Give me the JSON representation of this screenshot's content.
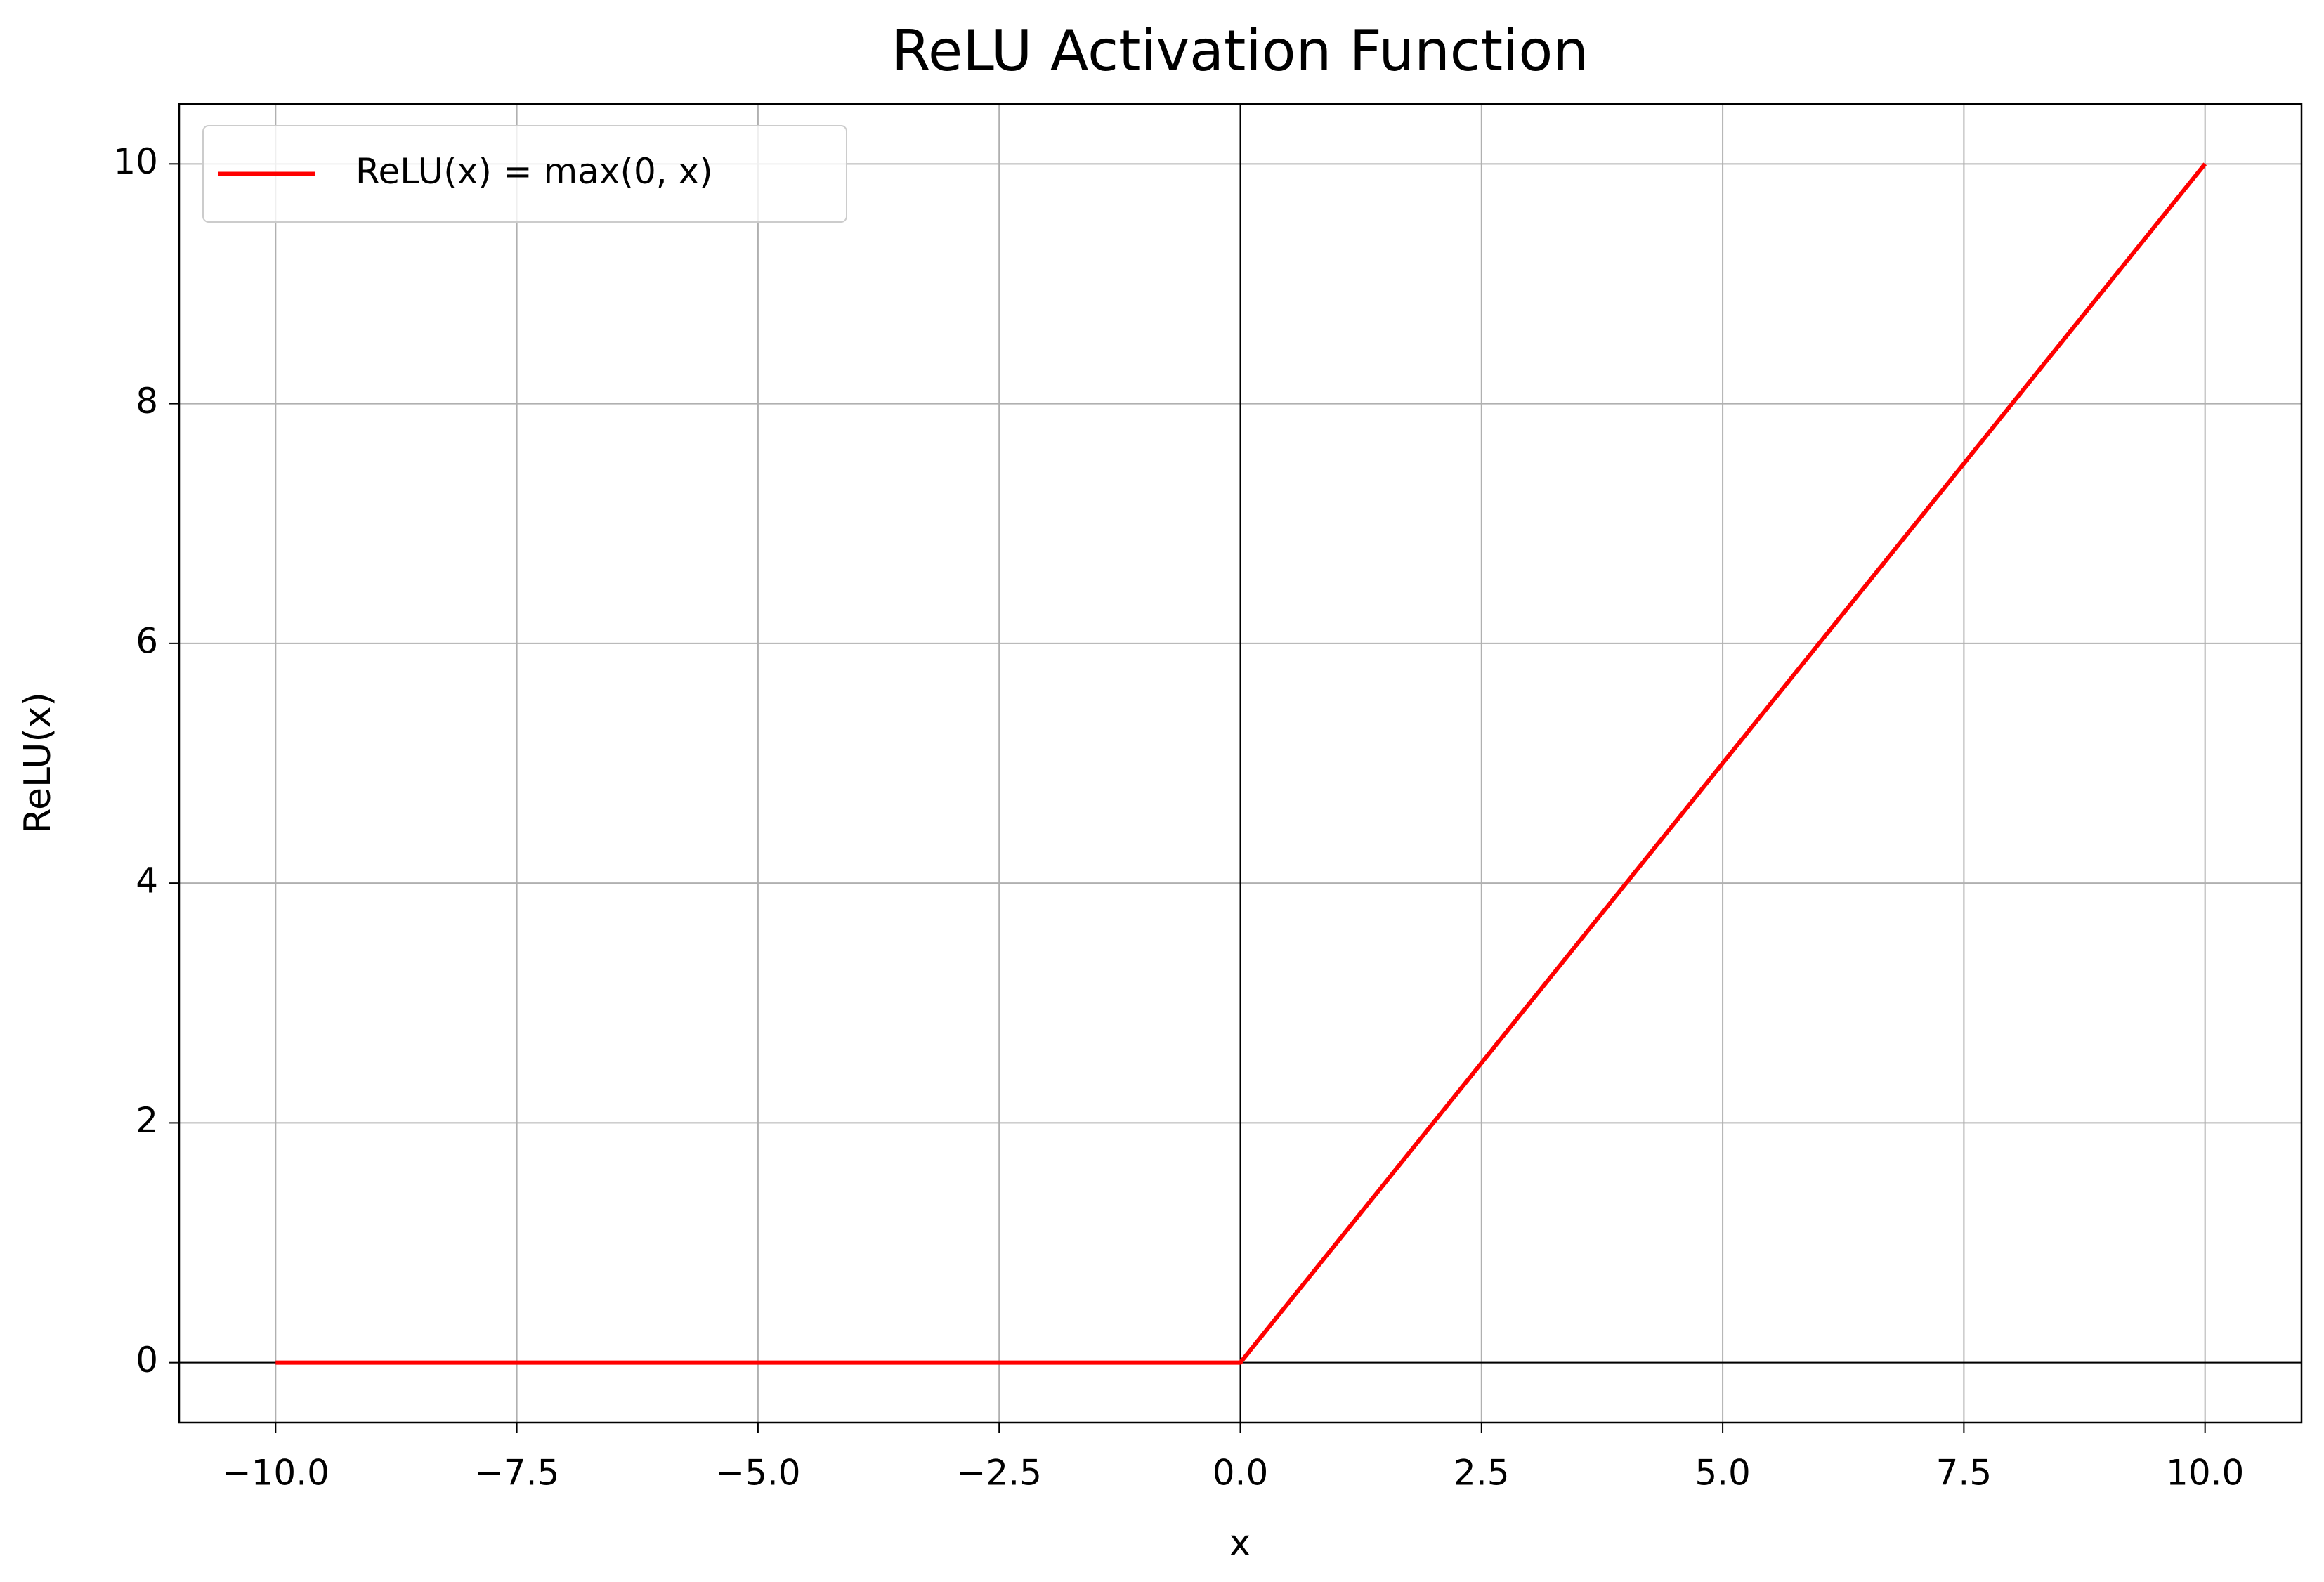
{
  "chart_data": {
    "type": "line",
    "title": "ReLU Activation Function",
    "x_label": "x",
    "y_label": "ReLU(x)",
    "x": [
      -10,
      0,
      10
    ],
    "series": [
      {
        "name": "ReLU(x) = max(0, x)",
        "color": "#ff0000",
        "values": [
          0,
          0,
          10
        ]
      }
    ],
    "xlim": [
      -11,
      11
    ],
    "xticks": [
      {
        "value": -10,
        "label": "−10.0"
      },
      {
        "value": -7.5,
        "label": "−7.5"
      },
      {
        "value": -5,
        "label": "−5.0"
      },
      {
        "value": -2.5,
        "label": "−2.5"
      },
      {
        "value": 0,
        "label": "0.0"
      },
      2.5,
      {
        "value": 5,
        "label": "5.0"
      },
      7.5,
      {
        "value": 10,
        "label": "10.0"
      }
    ],
    "ylim": [
      -0.5,
      10.5
    ],
    "yticks": [
      0,
      2,
      4,
      6,
      8,
      10
    ],
    "grid": true,
    "zero_lines": true,
    "legend": "upper left"
  }
}
